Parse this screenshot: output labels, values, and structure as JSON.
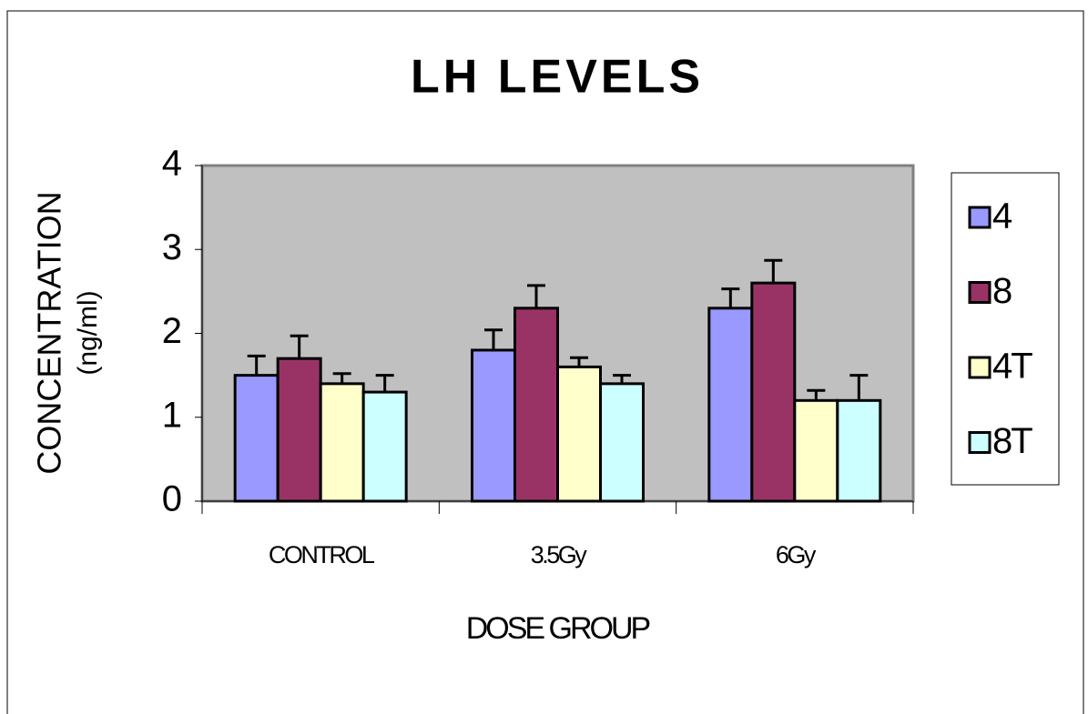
{
  "chart_data": {
    "type": "bar",
    "title": "LH LEVELS",
    "xlabel": "DOSE GROUP",
    "ylabel": [
      "CONCENTRATION",
      "(ng/ml)"
    ],
    "categories": [
      "CONTROL",
      "3.5Gy",
      "6Gy"
    ],
    "series": [
      {
        "name": "4",
        "color": "#9999ff",
        "values": [
          1.5,
          1.8,
          2.3
        ],
        "errors": [
          0.23,
          0.24,
          0.23
        ]
      },
      {
        "name": "8",
        "color": "#993366",
        "values": [
          1.7,
          2.3,
          2.6
        ],
        "errors": [
          0.27,
          0.27,
          0.27
        ]
      },
      {
        "name": "4T",
        "color": "#ffffcc",
        "values": [
          1.4,
          1.6,
          1.2
        ],
        "errors": [
          0.12,
          0.11,
          0.12
        ]
      },
      {
        "name": "8T",
        "color": "#ccffff",
        "values": [
          1.3,
          1.4,
          1.2
        ],
        "errors": [
          0.2,
          0.1,
          0.3
        ]
      }
    ],
    "ylim": [
      0,
      4
    ],
    "yticks": [
      0,
      1,
      2,
      3,
      4
    ],
    "legend": "right",
    "plot_background": "#c0c0c0"
  }
}
